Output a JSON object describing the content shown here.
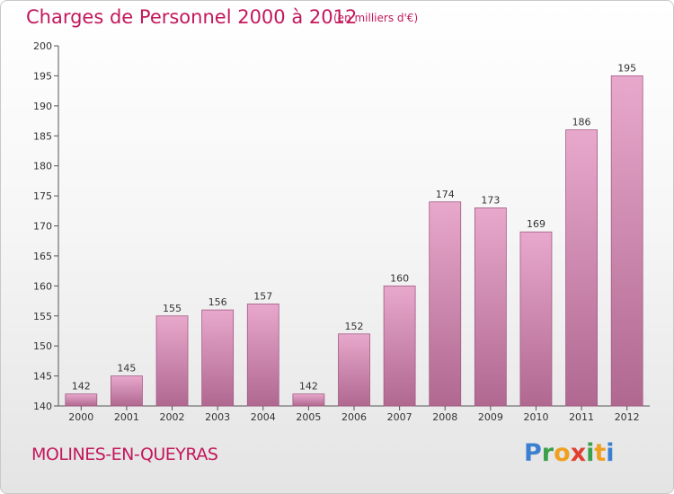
{
  "header": {
    "title": "Charges de Personnel 2000 à 2012",
    "subtitle": "(en milliers d'€)"
  },
  "footer": {
    "commune": "MOLINES-EN-QUEYRAS",
    "logo_text": "Proxiti"
  },
  "colors": {
    "title": "#c2185b",
    "bar_top": "#e8a8cc",
    "bar_bottom": "#b06890",
    "logo_letters": [
      "#3a7fd0",
      "#3aa04a",
      "#f0a020",
      "#e04030",
      "#3aa04a",
      "#f0a020",
      "#3a7fd0"
    ]
  },
  "chart_data": {
    "type": "bar",
    "title": "Charges de Personnel 2000 à 2012",
    "subtitle": "(en milliers d'€)",
    "categories": [
      "2000",
      "2001",
      "2002",
      "2003",
      "2004",
      "2005",
      "2006",
      "2007",
      "2008",
      "2009",
      "2010",
      "2011",
      "2012"
    ],
    "values": [
      142,
      145,
      155,
      156,
      157,
      142,
      152,
      160,
      174,
      173,
      169,
      186,
      195
    ],
    "ylim": [
      140,
      200
    ],
    "yticks": [
      140,
      145,
      150,
      155,
      160,
      165,
      170,
      175,
      180,
      185,
      190,
      195,
      200
    ],
    "grid": false,
    "xlabel": "",
    "ylabel": ""
  }
}
